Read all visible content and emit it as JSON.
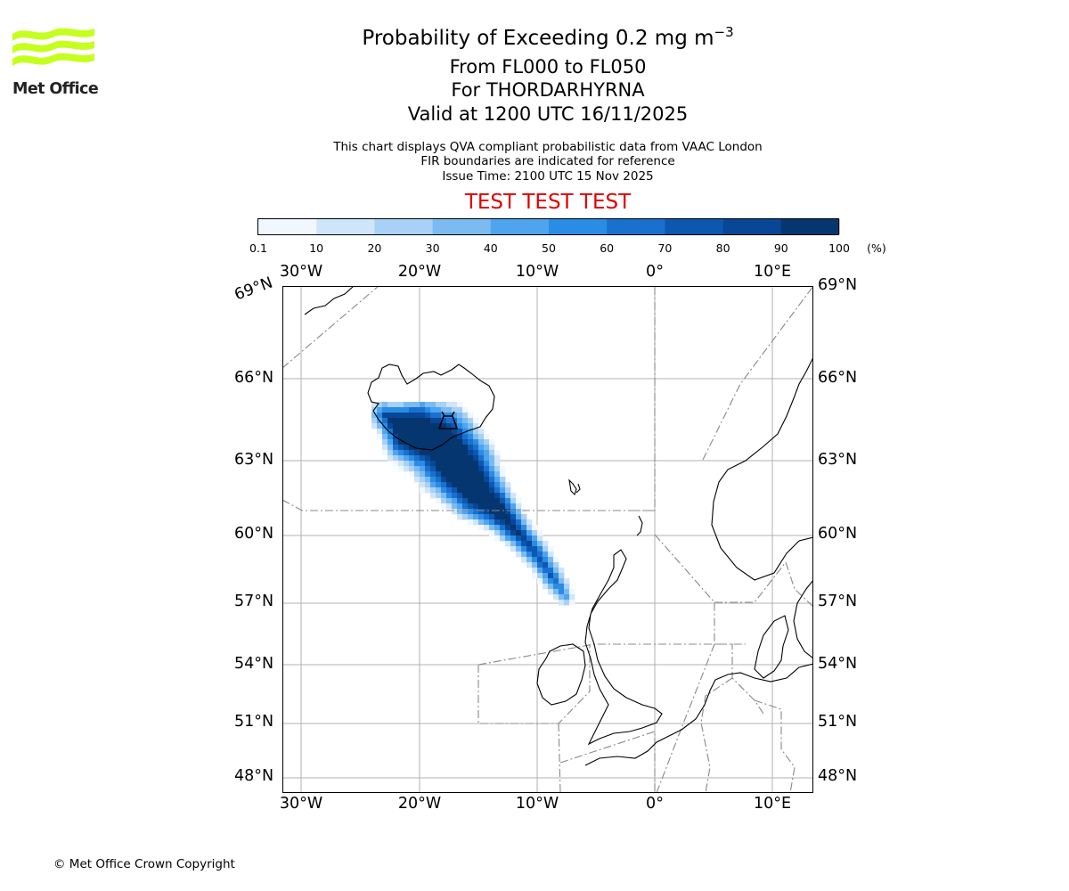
{
  "logo": {
    "text": "Met Office",
    "icon": "met-office-wave-logo"
  },
  "title": {
    "main_prefix": "Probability of Exceeding 0.2 mg m",
    "main_exponent": "−3",
    "level_range": "From FL000 to FL050",
    "volcano": "For THORDARHYRNA",
    "valid_time": "Valid at 1200 UTC 16/11/2025"
  },
  "subtitle": {
    "line1": "This chart displays QVA compliant probabilistic data from VAAC London",
    "line2": "FIR boundaries are indicated for reference",
    "line3": "Issue Time: 2100 UTC 15 Nov 2025"
  },
  "test_banner": "TEST TEST TEST",
  "colorbar": {
    "ticks": [
      "0.1",
      "10",
      "20",
      "30",
      "40",
      "50",
      "60",
      "70",
      "80",
      "90",
      "100"
    ],
    "unit": "(%)",
    "colors": [
      "#f0f7ff",
      "#cfe5fa",
      "#a9d0f6",
      "#7bbbf2",
      "#4ea5ee",
      "#2a8ce4",
      "#1a70cf",
      "#0c58b0",
      "#074796",
      "#05366f"
    ]
  },
  "map": {
    "lon_labels": [
      "30°W",
      "20°W",
      "10°W",
      "0°",
      "10°E"
    ],
    "lat_labels": [
      "69°N",
      "66°N",
      "63°N",
      "60°N",
      "57°N",
      "54°N",
      "51°N",
      "48°N"
    ],
    "volcano_marker": "volcano-marker-icon"
  },
  "copyright": "© Met Office Crown Copyright"
}
